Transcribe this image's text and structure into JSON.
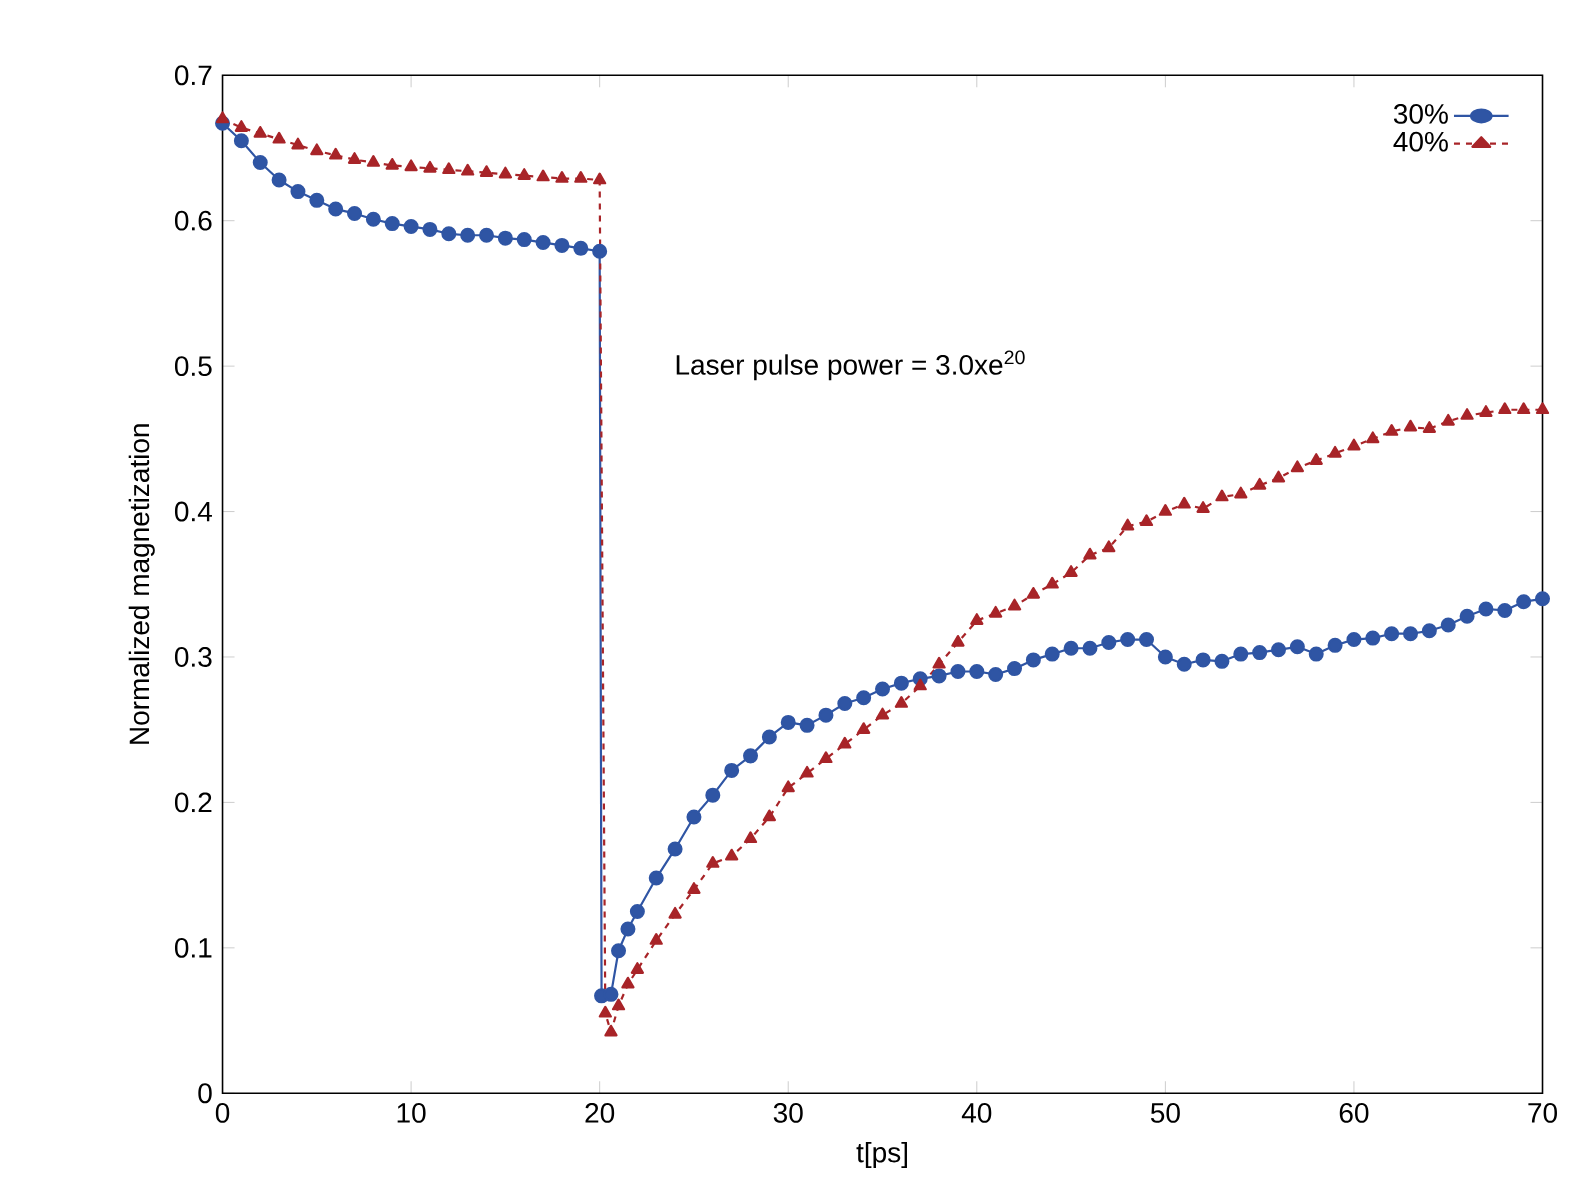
{
  "chart_data": {
    "type": "line",
    "xlabel": "t[ps]",
    "ylabel": "Normalized magnetization",
    "annotations": [
      "Laser pulse power = 3.0xe$^{20}$"
    ],
    "xlim": [
      0,
      70
    ],
    "ylim": [
      0,
      0.7
    ],
    "xticks": [
      0,
      10,
      20,
      30,
      40,
      50,
      60,
      70
    ],
    "yticks": [
      0,
      0.1,
      0.2,
      0.3,
      0.4,
      0.5,
      0.6,
      0.7
    ],
    "legend": "top right",
    "grid": false,
    "series": [
      {
        "name": "30%",
        "color": "#2f55a4",
        "marker": "circle",
        "line_style": "solid",
        "x": [
          0,
          1,
          2,
          3,
          4,
          5,
          6,
          7,
          8,
          9,
          10,
          11,
          12,
          13,
          14,
          15,
          16,
          17,
          18,
          19,
          20,
          20.1,
          20.6,
          21,
          21.5,
          22,
          23,
          24,
          25,
          26,
          27,
          28,
          29,
          30,
          31,
          32,
          33,
          34,
          35,
          36,
          37,
          38,
          39,
          40,
          41,
          42,
          43,
          44,
          45,
          46,
          47,
          48,
          49,
          50,
          51,
          52,
          53,
          54,
          55,
          56,
          57,
          58,
          59,
          60,
          61,
          62,
          63,
          64,
          65,
          66,
          67,
          68,
          69,
          70
        ],
        "values": [
          0.667,
          0.655,
          0.64,
          0.628,
          0.62,
          0.614,
          0.608,
          0.605,
          0.601,
          0.598,
          0.596,
          0.594,
          0.591,
          0.59,
          0.59,
          0.588,
          0.587,
          0.585,
          0.583,
          0.581,
          0.579,
          0.067,
          0.068,
          0.098,
          0.113,
          0.125,
          0.148,
          0.168,
          0.19,
          0.205,
          0.222,
          0.232,
          0.245,
          0.255,
          0.253,
          0.26,
          0.268,
          0.272,
          0.278,
          0.282,
          0.285,
          0.287,
          0.29,
          0.29,
          0.288,
          0.292,
          0.298,
          0.302,
          0.306,
          0.306,
          0.31,
          0.312,
          0.312,
          0.3,
          0.295,
          0.298,
          0.297,
          0.302,
          0.303,
          0.305,
          0.307,
          0.302,
          0.308,
          0.312,
          0.313,
          0.316,
          0.316,
          0.318,
          0.322,
          0.328,
          0.333,
          0.332,
          0.338,
          0.34
        ]
      },
      {
        "name": "40%",
        "color": "#a82428",
        "marker": "triangle",
        "line_style": "dashed",
        "x": [
          0,
          1,
          2,
          3,
          4,
          5,
          6,
          7,
          8,
          9,
          10,
          11,
          12,
          13,
          14,
          15,
          16,
          17,
          18,
          19,
          20,
          20.3,
          20.6,
          21,
          21.5,
          22,
          23,
          24,
          25,
          26,
          27,
          28,
          29,
          30,
          31,
          32,
          33,
          34,
          35,
          36,
          37,
          38,
          39,
          40,
          41,
          42,
          43,
          44,
          45,
          46,
          47,
          48,
          49,
          50,
          51,
          52,
          53,
          54,
          55,
          56,
          57,
          58,
          59,
          60,
          61,
          62,
          63,
          64,
          65,
          66,
          67,
          68,
          69,
          70
        ],
        "values": [
          0.67,
          0.664,
          0.66,
          0.656,
          0.652,
          0.648,
          0.645,
          0.642,
          0.64,
          0.638,
          0.637,
          0.636,
          0.635,
          0.634,
          0.633,
          0.632,
          0.631,
          0.63,
          0.629,
          0.629,
          0.628,
          0.055,
          0.042,
          0.06,
          0.075,
          0.085,
          0.105,
          0.123,
          0.14,
          0.158,
          0.163,
          0.175,
          0.19,
          0.21,
          0.22,
          0.23,
          0.24,
          0.25,
          0.26,
          0.268,
          0.28,
          0.295,
          0.31,
          0.325,
          0.33,
          0.335,
          0.343,
          0.35,
          0.358,
          0.37,
          0.375,
          0.39,
          0.393,
          0.4,
          0.405,
          0.402,
          0.41,
          0.412,
          0.418,
          0.423,
          0.43,
          0.435,
          0.44,
          0.445,
          0.45,
          0.455,
          0.458,
          0.457,
          0.462,
          0.466,
          0.468,
          0.47,
          0.47,
          0.47
        ]
      }
    ]
  }
}
